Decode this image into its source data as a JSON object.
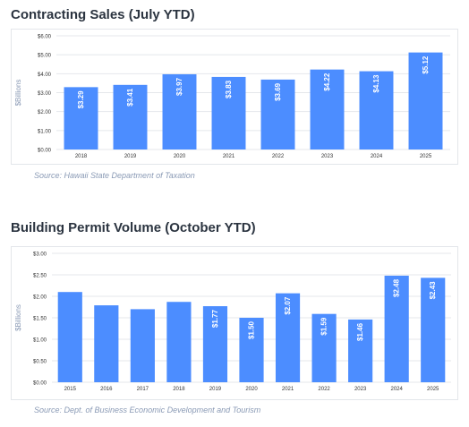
{
  "charts": [
    {
      "title": "Contracting Sales (July YTD)",
      "source": "Source:  Hawaii State Department of Taxation",
      "chart_data": {
        "type": "bar",
        "ylabel": "$Billions",
        "ylim": [
          0,
          6
        ],
        "ytick_labels": [
          "$0.00",
          "$1.00",
          "$2.00",
          "$3.00",
          "$4.00",
          "$5.00",
          "$6.00"
        ],
        "categories": [
          "2018",
          "2019",
          "2020",
          "2021",
          "2022",
          "2023",
          "2024",
          "2025"
        ],
        "values": [
          3.29,
          3.41,
          3.97,
          3.83,
          3.69,
          4.22,
          4.13,
          5.12
        ],
        "data_labels": [
          "$3.29",
          "$3.41",
          "$3.97",
          "$3.83",
          "$3.69",
          "$4.22",
          "$4.13",
          "$5.12"
        ],
        "grid": true,
        "bar_color": "#4c8dff"
      }
    },
    {
      "title": "Building Permit Volume (October YTD)",
      "source": "Source:  Dept. of Business Economic Development and Tourism",
      "chart_data": {
        "type": "bar",
        "ylabel": "$Billions",
        "ylim": [
          0,
          3
        ],
        "ytick_labels": [
          "$0.00",
          "$0.50",
          "$1.00",
          "$1.50",
          "$2.00",
          "$2.50",
          "$3.00"
        ],
        "categories": [
          "2015",
          "2016",
          "2017",
          "2018",
          "2019",
          "2020",
          "2021",
          "2022",
          "2023",
          "2024",
          "2025"
        ],
        "values": [
          2.1,
          1.79,
          1.7,
          1.87,
          1.77,
          1.5,
          2.07,
          1.59,
          1.46,
          2.48,
          2.43
        ],
        "data_labels": [
          "",
          "",
          "",
          "",
          "$1.77",
          "$1.50",
          "$2.07",
          "$1.59",
          "$1.46",
          "$2.48",
          "$2.43"
        ],
        "grid": true,
        "bar_color": "#4c8dff"
      }
    }
  ]
}
